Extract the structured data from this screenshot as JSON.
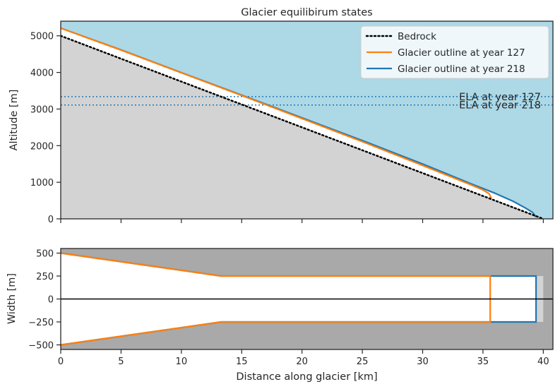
{
  "chart_data": [
    {
      "type": "line",
      "title": "Glacier equilibirum states",
      "xlabel": "",
      "ylabel": "Altitude [m]",
      "xlim": [
        0,
        40.8
      ],
      "ylim": [
        0,
        5400
      ],
      "x_ticks": [
        0,
        5,
        10,
        15,
        20,
        25,
        30,
        35,
        40
      ],
      "y_ticks": [
        0,
        1000,
        2000,
        3000,
        4000,
        5000
      ],
      "y_tick_labels": [
        "0",
        "1000",
        "2000",
        "3000",
        "4000",
        "5000"
      ],
      "x_tick_labels_shown": false,
      "background_color": "#add8e6",
      "bedrock_fill_color": "#d3d3d3",
      "series": [
        {
          "name": "Bedrock",
          "color": "#000000",
          "style": "dotted",
          "x": [
            0,
            40
          ],
          "y": [
            5000,
            0
          ]
        },
        {
          "name": "Glacier outline at year 127",
          "color": "#ff7f0e",
          "style": "solid",
          "x": [
            0,
            5,
            10,
            15,
            20,
            25,
            30,
            34,
            35,
            35.5,
            35.7
          ],
          "y": [
            5210,
            4610,
            3990,
            3370,
            2740,
            2110,
            1460,
            930,
            790,
            690,
            560
          ]
        },
        {
          "name": "Glacier outline at year 218",
          "color": "#1f77b4",
          "style": "solid",
          "x": [
            0,
            5,
            10,
            15,
            20,
            25,
            30,
            34,
            36,
            37.5,
            38.5,
            39.1,
            39.4
          ],
          "y": [
            5210,
            4615,
            3995,
            3380,
            2760,
            2140,
            1500,
            960,
            700,
            480,
            300,
            180,
            50
          ]
        }
      ],
      "hlines": [
        {
          "label": "ELA at year 127",
          "y": 3340,
          "color": "#1f77b4",
          "style": "dotted"
        },
        {
          "label": "ELA at year 218",
          "y": 3110,
          "color": "#1f77b4",
          "style": "dotted"
        }
      ],
      "legend_position": "top-right"
    },
    {
      "type": "line",
      "title": "",
      "xlabel": "Distance along glacier [km]",
      "ylabel": "Width [m]",
      "xlim": [
        0,
        40.8
      ],
      "ylim": [
        -550,
        550
      ],
      "x_ticks": [
        0,
        5,
        10,
        15,
        20,
        25,
        30,
        35,
        40
      ],
      "x_tick_labels": [
        "0",
        "5",
        "10",
        "15",
        "20",
        "25",
        "30",
        "35",
        "40"
      ],
      "y_ticks": [
        -500,
        -250,
        0,
        250,
        500
      ],
      "y_tick_labels": [
        "−500",
        "−250",
        "0",
        "250",
        "500"
      ],
      "background_color": "#a9a9a9",
      "valley_fill_color": "#d3d3d3",
      "valley": {
        "x": [
          0,
          13.3,
          40
        ],
        "half_width": [
          500,
          250,
          250
        ]
      },
      "centerline_y": 0,
      "series": [
        {
          "name": "Glacier outline at year 127",
          "color": "#ff7f0e",
          "x_end": 35.6
        },
        {
          "name": "Glacier outline at year 218",
          "color": "#1f77b4",
          "x_end": 39.4
        }
      ]
    }
  ]
}
